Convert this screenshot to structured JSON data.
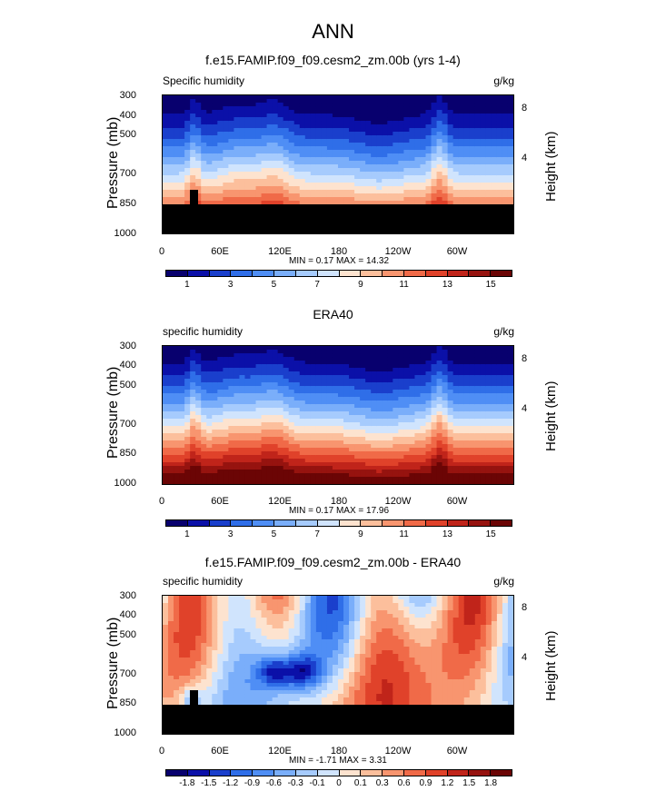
{
  "figure_title": "ANN",
  "chart_data": [
    {
      "type": "heatmap",
      "title": "f.e15.FAMIP.f09_f09.cesm2_zm.00b (yrs 1-4)",
      "variable": "Specific humidity",
      "units": "g/kg",
      "ylabel": "Pressure (mb)",
      "ylabel_right": "Height (km)",
      "yticks": [
        "300",
        "400",
        "500",
        "700",
        "850",
        "1000"
      ],
      "yticks_right": [
        "8",
        "4"
      ],
      "xticks": [
        "0",
        "60E",
        "120E",
        "180",
        "120W",
        "60W"
      ],
      "min_max": "MIN =  0.17  MAX =  14.32",
      "min": 0.17,
      "max": 14.32,
      "colorbar_labels": [
        "1",
        "3",
        "5",
        "7",
        "9",
        "11",
        "13",
        "15"
      ],
      "colors": [
        "#08006e",
        "#0b10a8",
        "#1a3fcc",
        "#2f6ee8",
        "#4f8ef5",
        "#7aaefa",
        "#a6cbfd",
        "#d0e4fd",
        "#fde3cf",
        "#fcbf9c",
        "#f8956f",
        "#f06a48",
        "#e0422a",
        "#c0241a",
        "#96130f",
        "#6b0505"
      ]
    },
    {
      "type": "heatmap",
      "title": "ERA40",
      "variable": "specific humidity",
      "units": "g/kg",
      "ylabel": "Pressure (mb)",
      "ylabel_right": "Height (km)",
      "yticks": [
        "300",
        "400",
        "500",
        "700",
        "850",
        "1000"
      ],
      "yticks_right": [
        "8",
        "4"
      ],
      "xticks": [
        "0",
        "60E",
        "120E",
        "180",
        "120W",
        "60W"
      ],
      "min_max": "MIN =  0.17  MAX =  17.96",
      "min": 0.17,
      "max": 17.96,
      "colorbar_labels": [
        "1",
        "3",
        "5",
        "7",
        "9",
        "11",
        "13",
        "15"
      ],
      "colors": [
        "#08006e",
        "#0b10a8",
        "#1a3fcc",
        "#2f6ee8",
        "#4f8ef5",
        "#7aaefa",
        "#a6cbfd",
        "#d0e4fd",
        "#fde3cf",
        "#fcbf9c",
        "#f8956f",
        "#f06a48",
        "#e0422a",
        "#c0241a",
        "#96130f",
        "#6b0505"
      ]
    },
    {
      "type": "heatmap",
      "title": "f.e15.FAMIP.f09_f09.cesm2_zm.00b - ERA40",
      "variable": "specific humidity",
      "units": "g/kg",
      "ylabel": "Pressure (mb)",
      "ylabel_right": "Height (km)",
      "yticks": [
        "300",
        "400",
        "500",
        "700",
        "850",
        "1000"
      ],
      "yticks_right": [
        "8",
        "4"
      ],
      "xticks": [
        "0",
        "60E",
        "120E",
        "180",
        "120W",
        "60W"
      ],
      "min_max": "MIN = -1.71  MAX =  3.31",
      "min": -1.71,
      "max": 3.31,
      "colorbar_labels": [
        "-1.8",
        "-1.5",
        "-1.2",
        "-0.9",
        "-0.6",
        "-0.3",
        "-0.1",
        "0",
        "0.1",
        "0.3",
        "0.6",
        "0.9",
        "1.2",
        "1.5",
        "1.8"
      ],
      "colors": [
        "#08006e",
        "#0b10a8",
        "#1a3fcc",
        "#2f6ee8",
        "#4f8ef5",
        "#7aaefa",
        "#a6cbfd",
        "#d0e4fd",
        "#fde3cf",
        "#fcbf9c",
        "#f8956f",
        "#f06a48",
        "#e0422a",
        "#c0241a",
        "#96130f",
        "#6b0505"
      ]
    }
  ]
}
